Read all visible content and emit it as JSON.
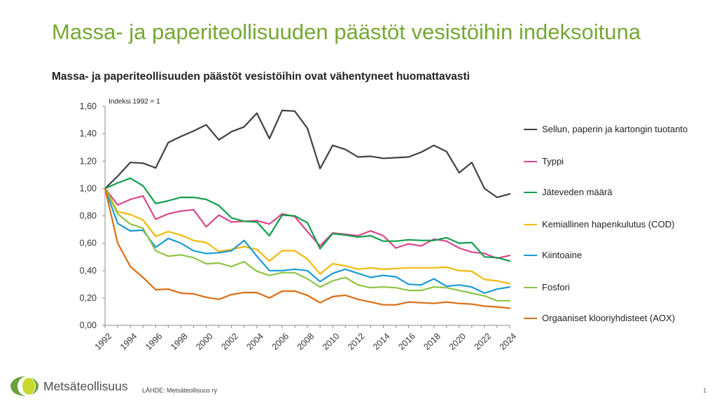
{
  "slide": {
    "title": "Massa- ja paperiteollisuuden päästöt vesistöihin indeksoituna",
    "logo_text": "Metsäteollisuus",
    "source": "LÄHDE: Metsäteollisuus ry",
    "page_number": "1"
  },
  "chart_data": {
    "type": "line",
    "title": "Massa- ja paperiteollisuuden päästöt vesistöihin ovat vähentyneet huomattavasti",
    "annotation": "Indeksi 1992 = 1",
    "x": [
      1992,
      1993,
      1994,
      1995,
      1996,
      1997,
      1998,
      1999,
      2000,
      2001,
      2002,
      2003,
      2004,
      2005,
      2006,
      2007,
      2008,
      2009,
      2010,
      2011,
      2012,
      2013,
      2014,
      2015,
      2016,
      2017,
      2018,
      2019,
      2020,
      2021,
      2022,
      2023,
      2024
    ],
    "x_tick_labels": [
      "1992",
      "1994",
      "1996",
      "1998",
      "2000",
      "2002",
      "2004",
      "2006",
      "2008",
      "2010",
      "2012",
      "2014",
      "2016",
      "2018",
      "2020",
      "2022",
      "2024"
    ],
    "y_tick_labels": [
      "0,00",
      "0,20",
      "0,40",
      "0,60",
      "0,80",
      "1,00",
      "1,20",
      "1,40",
      "1,60"
    ],
    "ylim": [
      0,
      1.6
    ],
    "grid": false,
    "legend_position": "right",
    "series": [
      {
        "name": "Sellun, paperin ja kartongin tuotanto",
        "color": "#404040",
        "values": [
          1.0,
          1.09,
          1.19,
          1.185,
          1.15,
          1.335,
          1.38,
          1.42,
          1.465,
          1.355,
          1.415,
          1.45,
          1.55,
          1.365,
          1.57,
          1.565,
          1.44,
          1.145,
          1.315,
          1.285,
          1.23,
          1.235,
          1.22,
          1.225,
          1.23,
          1.265,
          1.315,
          1.27,
          1.115,
          1.19,
          1.0,
          0.935,
          0.96
        ]
      },
      {
        "name": "Typpi",
        "color": "#d9468a",
        "values": [
          1.0,
          0.88,
          0.92,
          0.945,
          0.775,
          0.815,
          0.835,
          0.845,
          0.72,
          0.805,
          0.755,
          0.76,
          0.765,
          0.74,
          0.815,
          0.795,
          0.685,
          0.58,
          0.675,
          0.665,
          0.655,
          0.69,
          0.655,
          0.565,
          0.595,
          0.58,
          0.63,
          0.615,
          0.565,
          0.535,
          0.525,
          0.49,
          0.51
        ]
      },
      {
        "name": "Jäteveden määrä",
        "color": "#119e4c",
        "values": [
          1.0,
          1.04,
          1.075,
          1.02,
          0.89,
          0.91,
          0.935,
          0.935,
          0.92,
          0.875,
          0.785,
          0.76,
          0.755,
          0.655,
          0.805,
          0.8,
          0.75,
          0.56,
          0.67,
          0.66,
          0.645,
          0.655,
          0.615,
          0.615,
          0.625,
          0.62,
          0.62,
          0.64,
          0.6,
          0.605,
          0.5,
          0.495,
          0.47
        ]
      },
      {
        "name": "Kemiallinen hapenkulutus (COD)",
        "color": "#f1b90a",
        "values": [
          1.0,
          0.83,
          0.81,
          0.77,
          0.65,
          0.685,
          0.66,
          0.62,
          0.605,
          0.54,
          0.555,
          0.575,
          0.555,
          0.47,
          0.545,
          0.545,
          0.485,
          0.375,
          0.45,
          0.435,
          0.41,
          0.42,
          0.41,
          0.415,
          0.42,
          0.42,
          0.42,
          0.425,
          0.4,
          0.395,
          0.335,
          0.325,
          0.305
        ]
      },
      {
        "name": "Kiintoaine",
        "color": "#1a9ad6",
        "values": [
          1.0,
          0.745,
          0.69,
          0.695,
          0.57,
          0.635,
          0.6,
          0.545,
          0.525,
          0.53,
          0.545,
          0.62,
          0.505,
          0.4,
          0.4,
          0.41,
          0.4,
          0.32,
          0.38,
          0.41,
          0.38,
          0.35,
          0.365,
          0.355,
          0.3,
          0.295,
          0.34,
          0.285,
          0.295,
          0.28,
          0.235,
          0.265,
          0.28
        ]
      },
      {
        "name": "Fosfori",
        "color": "#8dc444",
        "values": [
          1.0,
          0.815,
          0.74,
          0.71,
          0.545,
          0.505,
          0.515,
          0.495,
          0.45,
          0.455,
          0.43,
          0.465,
          0.395,
          0.365,
          0.385,
          0.385,
          0.34,
          0.28,
          0.325,
          0.35,
          0.295,
          0.275,
          0.28,
          0.275,
          0.255,
          0.255,
          0.28,
          0.275,
          0.255,
          0.235,
          0.215,
          0.18,
          0.18
        ]
      },
      {
        "name": "Orgaaniset klooriyhdisteet (AOX)",
        "color": "#db6e13",
        "values": [
          1.0,
          0.6,
          0.43,
          0.35,
          0.26,
          0.265,
          0.235,
          0.23,
          0.205,
          0.19,
          0.225,
          0.24,
          0.24,
          0.2,
          0.25,
          0.25,
          0.22,
          0.165,
          0.21,
          0.22,
          0.19,
          0.17,
          0.15,
          0.15,
          0.17,
          0.165,
          0.16,
          0.17,
          0.16,
          0.155,
          0.14,
          0.135,
          0.125
        ]
      }
    ]
  }
}
